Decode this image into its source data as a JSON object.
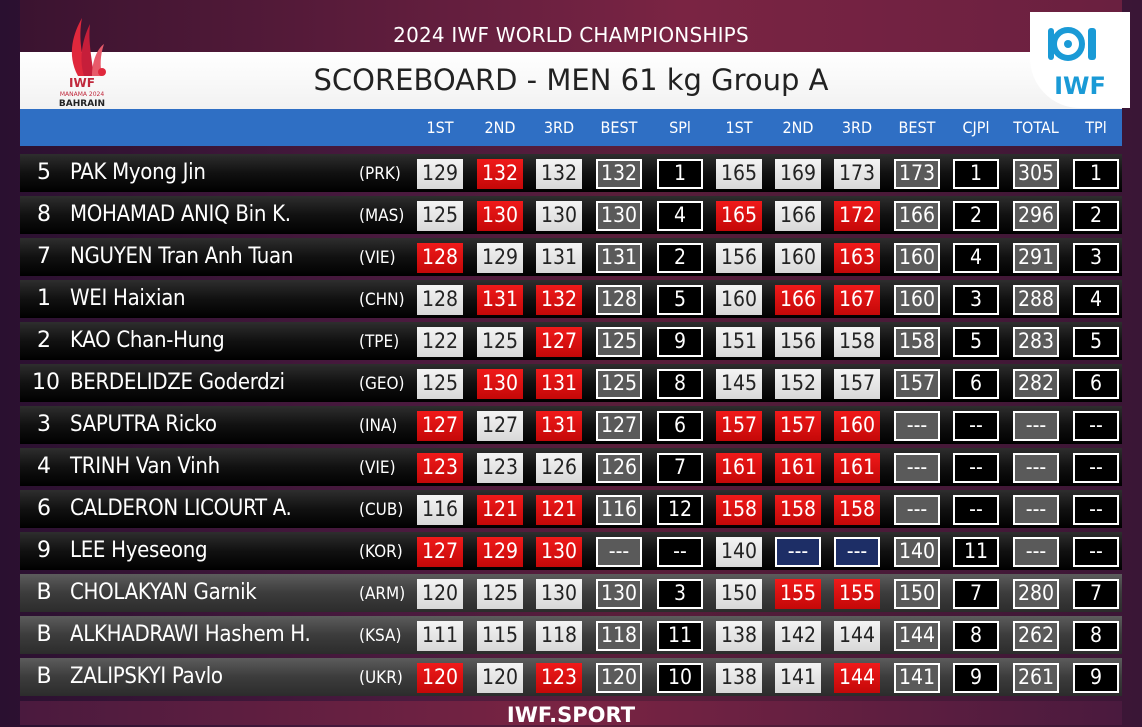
{
  "header": {
    "championship": "2024 IWF WORLD CHAMPIONSHIPS",
    "title": "SCOREBOARD - MEN 61 kg Group A",
    "host_logo_text": [
      "IWF",
      "MANAMA 2024",
      "BAHRAIN"
    ],
    "federation_logo_text": "IWF"
  },
  "columns": [
    "1ST",
    "2ND",
    "3RD",
    "BEST",
    "SPl",
    "1ST",
    "2ND",
    "3RD",
    "BEST",
    "CJPl",
    "TOTAL",
    "TPl"
  ],
  "colors": {
    "good_lift": "#e6e6e6",
    "no_lift": "#e01010",
    "pending": "#1d2e66",
    "header_bar": "#2f6fc4",
    "background": "#5a1e3a"
  },
  "athletes": [
    {
      "rank": "5",
      "name": "PAK Myong Jin",
      "country": "(PRK)",
      "cells": [
        {
          "v": "129",
          "s": "w"
        },
        {
          "v": "132",
          "s": "r"
        },
        {
          "v": "132",
          "s": "w"
        },
        {
          "v": "132",
          "s": "g"
        },
        {
          "v": "1",
          "s": "k"
        },
        {
          "v": "165",
          "s": "w"
        },
        {
          "v": "169",
          "s": "w"
        },
        {
          "v": "173",
          "s": "w"
        },
        {
          "v": "173",
          "s": "g"
        },
        {
          "v": "1",
          "s": "k"
        },
        {
          "v": "305",
          "s": "g"
        },
        {
          "v": "1",
          "s": "k"
        }
      ]
    },
    {
      "rank": "8",
      "name": "MOHAMAD ANIQ Bin K.",
      "country": "(MAS)",
      "cells": [
        {
          "v": "125",
          "s": "w"
        },
        {
          "v": "130",
          "s": "r"
        },
        {
          "v": "130",
          "s": "w"
        },
        {
          "v": "130",
          "s": "g"
        },
        {
          "v": "4",
          "s": "k"
        },
        {
          "v": "165",
          "s": "r"
        },
        {
          "v": "166",
          "s": "w"
        },
        {
          "v": "172",
          "s": "r"
        },
        {
          "v": "166",
          "s": "g"
        },
        {
          "v": "2",
          "s": "k"
        },
        {
          "v": "296",
          "s": "g"
        },
        {
          "v": "2",
          "s": "k"
        }
      ]
    },
    {
      "rank": "7",
      "name": "NGUYEN Tran Anh Tuan",
      "country": "(VIE)",
      "cells": [
        {
          "v": "128",
          "s": "r"
        },
        {
          "v": "129",
          "s": "w"
        },
        {
          "v": "131",
          "s": "w"
        },
        {
          "v": "131",
          "s": "g"
        },
        {
          "v": "2",
          "s": "k"
        },
        {
          "v": "156",
          "s": "w"
        },
        {
          "v": "160",
          "s": "w"
        },
        {
          "v": "163",
          "s": "r"
        },
        {
          "v": "160",
          "s": "g"
        },
        {
          "v": "4",
          "s": "k"
        },
        {
          "v": "291",
          "s": "g"
        },
        {
          "v": "3",
          "s": "k"
        }
      ]
    },
    {
      "rank": "1",
      "name": "WEI Haixian",
      "country": "(CHN)",
      "cells": [
        {
          "v": "128",
          "s": "w"
        },
        {
          "v": "131",
          "s": "r"
        },
        {
          "v": "132",
          "s": "r"
        },
        {
          "v": "128",
          "s": "g"
        },
        {
          "v": "5",
          "s": "k"
        },
        {
          "v": "160",
          "s": "w"
        },
        {
          "v": "166",
          "s": "r"
        },
        {
          "v": "167",
          "s": "r"
        },
        {
          "v": "160",
          "s": "g"
        },
        {
          "v": "3",
          "s": "k"
        },
        {
          "v": "288",
          "s": "g"
        },
        {
          "v": "4",
          "s": "k"
        }
      ]
    },
    {
      "rank": "2",
      "name": "KAO Chan-Hung",
      "country": "(TPE)",
      "cells": [
        {
          "v": "122",
          "s": "w"
        },
        {
          "v": "125",
          "s": "w"
        },
        {
          "v": "127",
          "s": "r"
        },
        {
          "v": "125",
          "s": "g"
        },
        {
          "v": "9",
          "s": "k"
        },
        {
          "v": "151",
          "s": "w"
        },
        {
          "v": "156",
          "s": "w"
        },
        {
          "v": "158",
          "s": "w"
        },
        {
          "v": "158",
          "s": "g"
        },
        {
          "v": "5",
          "s": "k"
        },
        {
          "v": "283",
          "s": "g"
        },
        {
          "v": "5",
          "s": "k"
        }
      ]
    },
    {
      "rank": "10",
      "name": "BERDELIDZE Goderdzi",
      "country": "(GEO)",
      "cells": [
        {
          "v": "125",
          "s": "w"
        },
        {
          "v": "130",
          "s": "r"
        },
        {
          "v": "131",
          "s": "r"
        },
        {
          "v": "125",
          "s": "g"
        },
        {
          "v": "8",
          "s": "k"
        },
        {
          "v": "145",
          "s": "w"
        },
        {
          "v": "152",
          "s": "w"
        },
        {
          "v": "157",
          "s": "w"
        },
        {
          "v": "157",
          "s": "g"
        },
        {
          "v": "6",
          "s": "k"
        },
        {
          "v": "282",
          "s": "g"
        },
        {
          "v": "6",
          "s": "k"
        }
      ]
    },
    {
      "rank": "3",
      "name": "SAPUTRA Ricko",
      "country": "(INA)",
      "cells": [
        {
          "v": "127",
          "s": "r"
        },
        {
          "v": "127",
          "s": "w"
        },
        {
          "v": "131",
          "s": "r"
        },
        {
          "v": "127",
          "s": "g"
        },
        {
          "v": "6",
          "s": "k"
        },
        {
          "v": "157",
          "s": "r"
        },
        {
          "v": "157",
          "s": "r"
        },
        {
          "v": "160",
          "s": "r"
        },
        {
          "v": "---",
          "s": "g"
        },
        {
          "v": "--",
          "s": "k"
        },
        {
          "v": "---",
          "s": "g"
        },
        {
          "v": "--",
          "s": "k"
        }
      ]
    },
    {
      "rank": "4",
      "name": "TRINH Van Vinh",
      "country": "(VIE)",
      "cells": [
        {
          "v": "123",
          "s": "r"
        },
        {
          "v": "123",
          "s": "w"
        },
        {
          "v": "126",
          "s": "w"
        },
        {
          "v": "126",
          "s": "g"
        },
        {
          "v": "7",
          "s": "k"
        },
        {
          "v": "161",
          "s": "r"
        },
        {
          "v": "161",
          "s": "r"
        },
        {
          "v": "161",
          "s": "r"
        },
        {
          "v": "---",
          "s": "g"
        },
        {
          "v": "--",
          "s": "k"
        },
        {
          "v": "---",
          "s": "g"
        },
        {
          "v": "--",
          "s": "k"
        }
      ]
    },
    {
      "rank": "6",
      "name": "CALDERON LICOURT A.",
      "country": "(CUB)",
      "cells": [
        {
          "v": "116",
          "s": "w"
        },
        {
          "v": "121",
          "s": "r"
        },
        {
          "v": "121",
          "s": "r"
        },
        {
          "v": "116",
          "s": "g"
        },
        {
          "v": "12",
          "s": "k"
        },
        {
          "v": "158",
          "s": "r"
        },
        {
          "v": "158",
          "s": "r"
        },
        {
          "v": "158",
          "s": "r"
        },
        {
          "v": "---",
          "s": "g"
        },
        {
          "v": "--",
          "s": "k"
        },
        {
          "v": "---",
          "s": "g"
        },
        {
          "v": "--",
          "s": "k"
        }
      ]
    },
    {
      "rank": "9",
      "name": "LEE Hyeseong",
      "country": "(KOR)",
      "cells": [
        {
          "v": "127",
          "s": "r"
        },
        {
          "v": "129",
          "s": "r"
        },
        {
          "v": "130",
          "s": "r"
        },
        {
          "v": "---",
          "s": "g"
        },
        {
          "v": "--",
          "s": "k"
        },
        {
          "v": "140",
          "s": "w"
        },
        {
          "v": "---",
          "s": "n"
        },
        {
          "v": "---",
          "s": "n"
        },
        {
          "v": "140",
          "s": "g"
        },
        {
          "v": "11",
          "s": "k"
        },
        {
          "v": "---",
          "s": "g"
        },
        {
          "v": "--",
          "s": "k"
        }
      ]
    },
    {
      "rank": "B",
      "group_b": true,
      "name": "CHOLAKYAN Garnik",
      "country": "(ARM)",
      "cells": [
        {
          "v": "120",
          "s": "w"
        },
        {
          "v": "125",
          "s": "w"
        },
        {
          "v": "130",
          "s": "w"
        },
        {
          "v": "130",
          "s": "g"
        },
        {
          "v": "3",
          "s": "k"
        },
        {
          "v": "150",
          "s": "w"
        },
        {
          "v": "155",
          "s": "r"
        },
        {
          "v": "155",
          "s": "r"
        },
        {
          "v": "150",
          "s": "g"
        },
        {
          "v": "7",
          "s": "k"
        },
        {
          "v": "280",
          "s": "g"
        },
        {
          "v": "7",
          "s": "k"
        }
      ]
    },
    {
      "rank": "B",
      "group_b": true,
      "name": "ALKHADRAWI Hashem H.",
      "country": "(KSA)",
      "cells": [
        {
          "v": "111",
          "s": "w"
        },
        {
          "v": "115",
          "s": "w"
        },
        {
          "v": "118",
          "s": "w"
        },
        {
          "v": "118",
          "s": "g"
        },
        {
          "v": "11",
          "s": "k"
        },
        {
          "v": "138",
          "s": "w"
        },
        {
          "v": "142",
          "s": "w"
        },
        {
          "v": "144",
          "s": "w"
        },
        {
          "v": "144",
          "s": "g"
        },
        {
          "v": "8",
          "s": "k"
        },
        {
          "v": "262",
          "s": "g"
        },
        {
          "v": "8",
          "s": "k"
        }
      ]
    },
    {
      "rank": "B",
      "group_b": true,
      "name": "ZALIPSKYI Pavlo",
      "country": "(UKR)",
      "cells": [
        {
          "v": "120",
          "s": "r"
        },
        {
          "v": "120",
          "s": "w"
        },
        {
          "v": "123",
          "s": "r"
        },
        {
          "v": "120",
          "s": "g"
        },
        {
          "v": "10",
          "s": "k"
        },
        {
          "v": "138",
          "s": "w"
        },
        {
          "v": "141",
          "s": "w"
        },
        {
          "v": "144",
          "s": "r"
        },
        {
          "v": "141",
          "s": "g"
        },
        {
          "v": "9",
          "s": "k"
        },
        {
          "v": "261",
          "s": "g"
        },
        {
          "v": "9",
          "s": "k"
        }
      ]
    }
  ],
  "footer": {
    "text": "IWF.SPORT"
  }
}
